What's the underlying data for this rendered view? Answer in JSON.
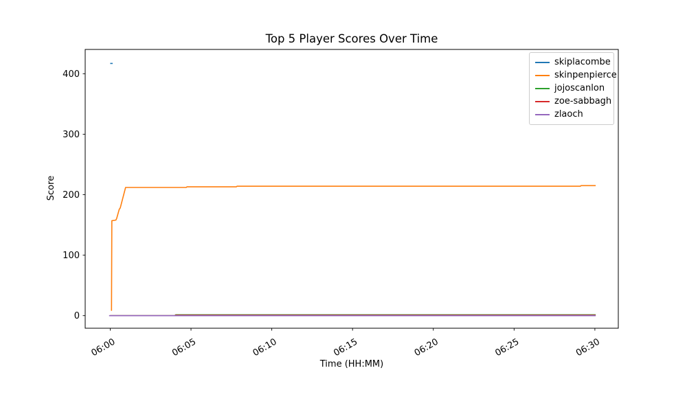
{
  "chart_data": {
    "type": "line",
    "title": "Top 5 Player Scores Over Time",
    "xlabel": "Time (HH:MM)",
    "ylabel": "Score",
    "x_unit": "minutes after 06:00",
    "xlim": [
      -1.55,
      31.45
    ],
    "ylim": [
      -20.8,
      440.2
    ],
    "grid": false,
    "legend_position": "upper right",
    "x_ticks": [
      {
        "v": 0,
        "label": "06:00"
      },
      {
        "v": 5,
        "label": "06:05"
      },
      {
        "v": 10,
        "label": "06:10"
      },
      {
        "v": 15,
        "label": "06:15"
      },
      {
        "v": 20,
        "label": "06:20"
      },
      {
        "v": 25,
        "label": "06:25"
      },
      {
        "v": 30,
        "label": "06:30"
      }
    ],
    "y_ticks": [
      {
        "v": 0,
        "label": "0"
      },
      {
        "v": 100,
        "label": "100"
      },
      {
        "v": 200,
        "label": "200"
      },
      {
        "v": 300,
        "label": "300"
      },
      {
        "v": 400,
        "label": "400"
      }
    ],
    "series": [
      {
        "name": "skiplacombe",
        "color": "#1f77b4",
        "points": [
          [
            0,
            417
          ],
          [
            0.15,
            417
          ]
        ]
      },
      {
        "name": "skinpenpierce",
        "color": "#ff7f0e",
        "points": [
          [
            0.08,
            8
          ],
          [
            0.1,
            157
          ],
          [
            0.35,
            158
          ],
          [
            0.4,
            161
          ],
          [
            0.56,
            176
          ],
          [
            0.62,
            178
          ],
          [
            0.95,
            212
          ],
          [
            4.7,
            212
          ],
          [
            4.75,
            213
          ],
          [
            7.8,
            213
          ],
          [
            7.85,
            214
          ],
          [
            29.1,
            214
          ],
          [
            29.15,
            215
          ],
          [
            30.05,
            215
          ]
        ]
      },
      {
        "name": "jojoscanlon",
        "color": "#2ca02c",
        "points": [
          [
            0,
            0
          ],
          [
            4.0,
            0
          ],
          [
            4.05,
            1.5
          ],
          [
            30.05,
            1.5
          ]
        ]
      },
      {
        "name": "zoe-sabbagh",
        "color": "#d62728",
        "points": [
          [
            0,
            0
          ],
          [
            4.0,
            0
          ],
          [
            4.05,
            0.8
          ],
          [
            30.05,
            0.8
          ]
        ]
      },
      {
        "name": "zlaoch",
        "color": "#9467bd",
        "points": [
          [
            -0.07,
            0
          ],
          [
            30.05,
            0
          ]
        ]
      }
    ]
  }
}
